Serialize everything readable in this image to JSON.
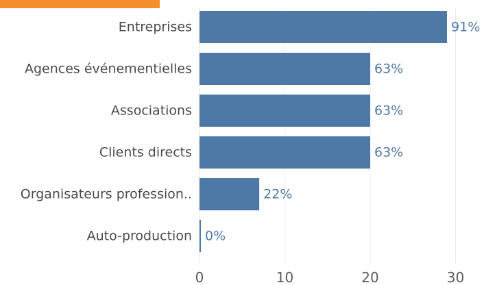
{
  "accent_color": "#f28e2b",
  "bar_color": "#4e79a7",
  "chart_data": {
    "type": "bar",
    "orientation": "horizontal",
    "categories": [
      "Entreprises",
      "Agences événementielles",
      "Associations",
      "Clients directs",
      "Organisateurs profession..",
      "Auto-production"
    ],
    "values": [
      29,
      20,
      20,
      20,
      7,
      0
    ],
    "data_labels": [
      "91%",
      "63%",
      "63%",
      "63%",
      "22%",
      "0%"
    ],
    "xticks": [
      0,
      10,
      20,
      30
    ],
    "xlim": [
      0,
      33
    ],
    "grid": true,
    "title": "",
    "xlabel": "",
    "ylabel": ""
  }
}
